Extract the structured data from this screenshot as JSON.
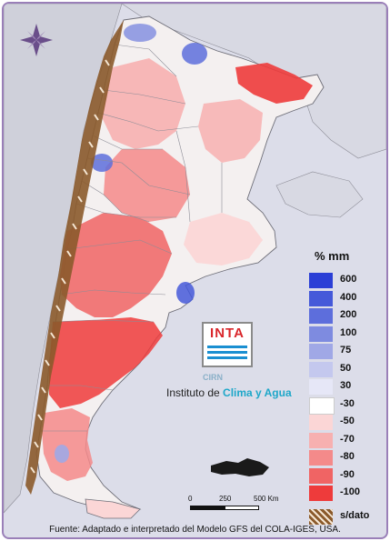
{
  "legend": {
    "title": "% mm",
    "items": [
      {
        "label": "600",
        "color": "#2b3fd6"
      },
      {
        "label": "400",
        "color": "#4559d9"
      },
      {
        "label": "200",
        "color": "#5d6edc"
      },
      {
        "label": "100",
        "color": "#7e8be0"
      },
      {
        "label": "75",
        "color": "#a0a8e6"
      },
      {
        "label": "50",
        "color": "#c4c8ee"
      },
      {
        "label": "30",
        "color": "#e6e7f7"
      },
      {
        "label": "-30",
        "color": "#ffffff"
      },
      {
        "label": "-50",
        "color": "#fbd6d6"
      },
      {
        "label": "-70",
        "color": "#f7b0b0"
      },
      {
        "label": "-80",
        "color": "#f48a8a"
      },
      {
        "label": "-90",
        "color": "#f06464"
      },
      {
        "label": "-100",
        "color": "#ee3b3b"
      }
    ],
    "no_data_label": "s/dato",
    "no_data_color": "#8b5a2b"
  },
  "logo": {
    "text": "INTA",
    "cirn": "CIRN",
    "institute_prefix": "Instituto de ",
    "institute_accent": "Clima y Agua"
  },
  "scale": {
    "labels": [
      "0",
      "250",
      "500 Km"
    ]
  },
  "source": "Fuente: Adaptado e interpretado del Modelo GFS del COLA-IGES, USA.",
  "map": {
    "compass": "compass-rose-icon",
    "ocean_color": "#dcdde9",
    "land_color": "#f2f2f2"
  }
}
